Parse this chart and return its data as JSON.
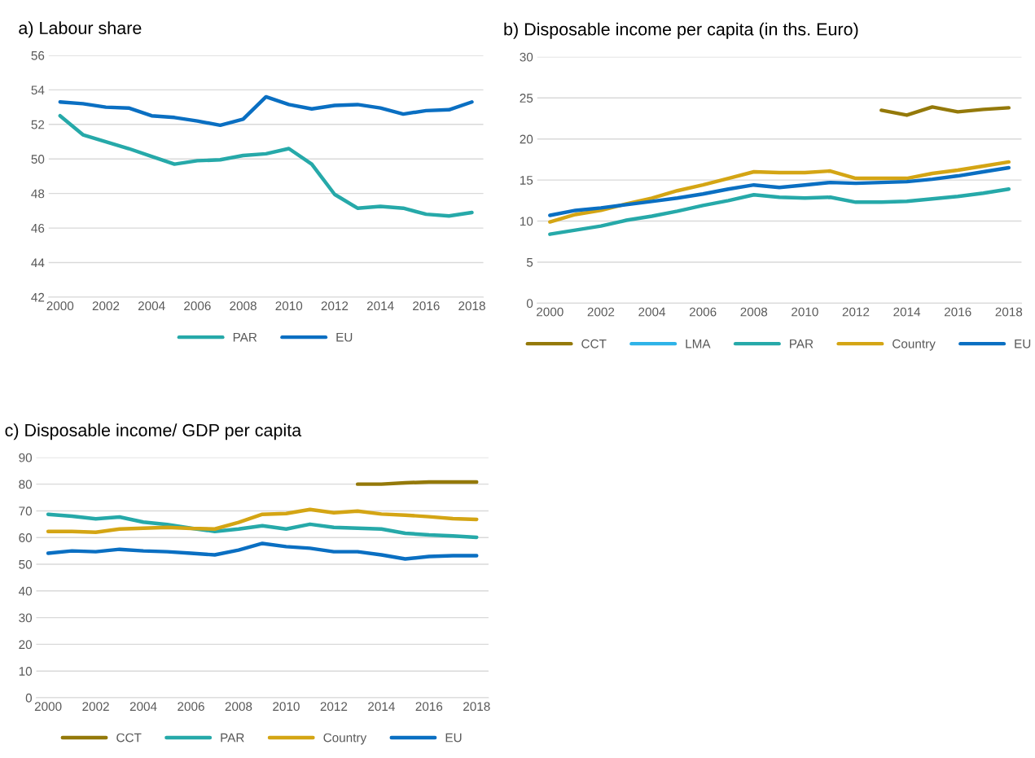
{
  "chart_data": [
    {
      "type": "line",
      "title": "a) Labour share",
      "categories": [
        "2000",
        null,
        "2002",
        null,
        "2004",
        null,
        "2006",
        null,
        "2008",
        null,
        "2010",
        null,
        "2012",
        null,
        "2014",
        null,
        "2016",
        null,
        "2018"
      ],
      "ylim": [
        42,
        56
      ],
      "yticks": [
        42,
        44,
        46,
        48,
        50,
        52,
        54,
        56
      ],
      "grid": "y",
      "legend": "bottom",
      "line_style": "solid",
      "series": [
        {
          "name": "PAR",
          "color": "#26a9a9",
          "values": [
            52.5,
            51.4,
            51.0,
            50.6,
            50.15,
            49.7,
            49.9,
            49.95,
            50.2,
            50.3,
            50.6,
            49.7,
            47.95,
            47.15,
            47.25,
            47.15,
            46.8,
            46.7,
            46.9
          ]
        },
        {
          "name": "EU",
          "color": "#0a6fc2",
          "values": [
            53.3,
            53.2,
            53.0,
            52.95,
            52.5,
            52.4,
            52.2,
            51.95,
            52.3,
            53.6,
            53.15,
            52.9,
            53.1,
            53.15,
            52.95,
            52.6,
            52.8,
            52.85,
            53.3
          ]
        }
      ]
    },
    {
      "type": "line",
      "title": "b) Disposable income per capita (in ths. Euro)",
      "categories": [
        "2000",
        null,
        "2002",
        null,
        "2004",
        null,
        "2006",
        null,
        "2008",
        null,
        "2010",
        null,
        "2012",
        null,
        "2014",
        null,
        "2016",
        null,
        "2018"
      ],
      "ylim": [
        0,
        30
      ],
      "yticks": [
        0,
        5,
        10,
        15,
        20,
        25,
        30
      ],
      "grid": "y",
      "legend": "bottom",
      "line_style": "solid",
      "series": [
        {
          "name": "CCT",
          "color": "#94790a",
          "values": [
            null,
            null,
            null,
            null,
            null,
            null,
            null,
            null,
            null,
            null,
            null,
            null,
            null,
            23.5,
            22.9,
            23.9,
            23.3,
            23.6,
            23.8
          ]
        },
        {
          "name": "LMA",
          "color": "#2eb3e8",
          "values": [
            null,
            null,
            null,
            null,
            null,
            null,
            null,
            null,
            null,
            null,
            null,
            null,
            null,
            null,
            null,
            null,
            null,
            null,
            null
          ]
        },
        {
          "name": "PAR",
          "color": "#26a9a9",
          "values": [
            8.4,
            8.9,
            9.4,
            10.1,
            10.6,
            11.2,
            11.9,
            12.5,
            13.2,
            12.9,
            12.8,
            12.9,
            12.3,
            12.3,
            12.4,
            12.7,
            13.0,
            13.4,
            13.9
          ]
        },
        {
          "name": "Country",
          "color": "#d4a514",
          "values": [
            9.9,
            10.8,
            11.3,
            12.1,
            12.8,
            13.7,
            14.4,
            15.2,
            16.0,
            15.9,
            15.9,
            16.1,
            15.2,
            15.2,
            15.2,
            15.8,
            16.2,
            16.7,
            17.2
          ]
        },
        {
          "name": "EU",
          "color": "#0a6fc2",
          "values": [
            10.7,
            11.3,
            11.6,
            12.0,
            12.4,
            12.8,
            13.3,
            13.9,
            14.4,
            14.1,
            14.4,
            14.7,
            14.6,
            14.7,
            14.8,
            15.1,
            15.5,
            16.0,
            16.5
          ]
        }
      ]
    },
    {
      "type": "line",
      "title": "c) Disposable income/ GDP per capita",
      "categories": [
        "2000",
        null,
        "2002",
        null,
        "2004",
        null,
        "2006",
        null,
        "2008",
        null,
        "2010",
        null,
        "2012",
        null,
        "2014",
        null,
        "2016",
        null,
        "2018"
      ],
      "ylim": [
        0,
        90
      ],
      "yticks": [
        0,
        10,
        20,
        30,
        40,
        50,
        60,
        70,
        80,
        90
      ],
      "grid": "y",
      "legend": "bottom",
      "line_style": "solid",
      "series": [
        {
          "name": "CCT",
          "color": "#94790a",
          "values": [
            null,
            null,
            null,
            null,
            null,
            null,
            null,
            null,
            null,
            null,
            null,
            null,
            null,
            80,
            80,
            80.5,
            80.8,
            80.8,
            80.8
          ]
        },
        {
          "name": "PAR",
          "color": "#26a9a9",
          "values": [
            68.7,
            68,
            67,
            67.7,
            65.8,
            64.9,
            63.5,
            62.3,
            63.2,
            64.4,
            63.2,
            65,
            63.8,
            63.5,
            63.2,
            61.6,
            61,
            60.6,
            60.1
          ]
        },
        {
          "name": "Country",
          "color": "#d4a514",
          "values": [
            62.3,
            62.3,
            62,
            63.2,
            63.5,
            63.8,
            63.4,
            63.2,
            65.7,
            68.7,
            69,
            70.5,
            69.3,
            69.9,
            68.8,
            68.4,
            67.8,
            67.1,
            66.8
          ]
        },
        {
          "name": "EU",
          "color": "#0a6fc2",
          "values": [
            54.1,
            55,
            54.7,
            55.6,
            55,
            54.7,
            54.1,
            53.5,
            55.3,
            57.8,
            56.6,
            56,
            54.7,
            54.7,
            53.5,
            52,
            52.9,
            53.2,
            53.2
          ]
        }
      ]
    }
  ]
}
